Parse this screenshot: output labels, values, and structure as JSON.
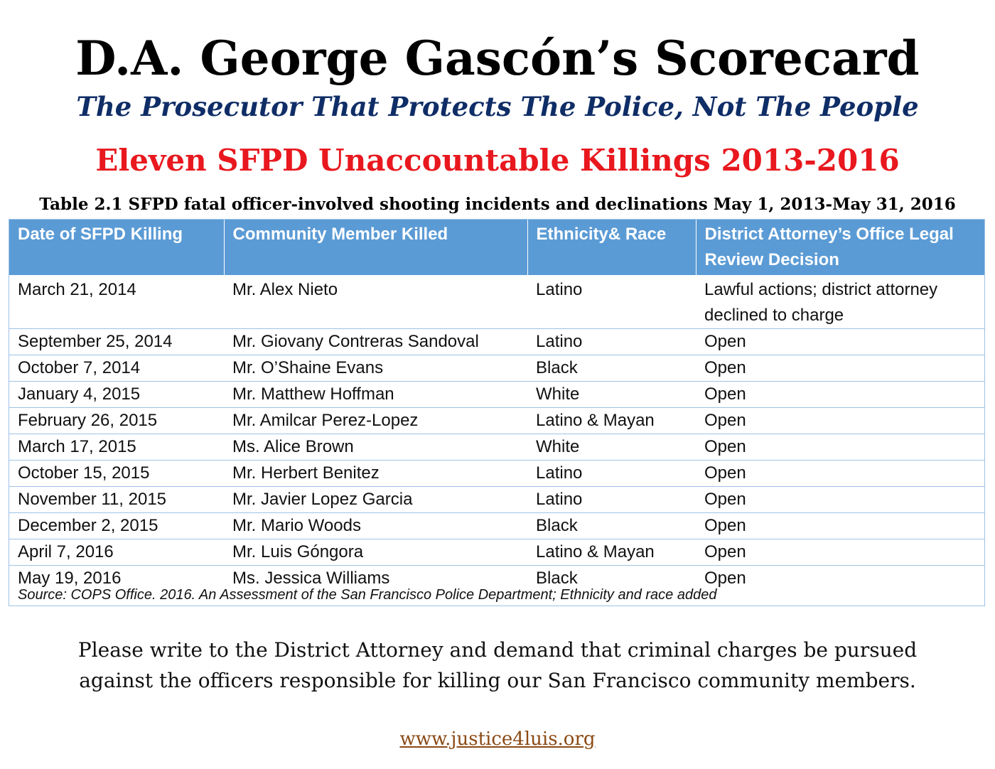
{
  "header": {
    "title": "D.A. George Gascón’s Scorecard",
    "subtitle": "The Prosecutor That Protects The Police, Not The People",
    "headline": "Eleven SFPD Unaccountable Killings 2013-2016",
    "caption": "Table 2.1 SFPD fatal officer-involved shooting incidents and declinations May 1, 2013-May 31, 2016"
  },
  "table": {
    "columns": [
      "Date of SFPD Killing",
      "Community Member Killed",
      "Ethnicity& Race",
      "District Attorney’s Office Legal Review Decision"
    ],
    "rows": [
      [
        "March 21, 2014",
        "Mr. Alex Nieto",
        "Latino",
        "Lawful actions; district attorney declined to charge"
      ],
      [
        "September 25, 2014",
        "Mr. Giovany Contreras Sandoval",
        "Latino",
        "Open"
      ],
      [
        "October 7, 2014",
        "Mr. O’Shaine Evans",
        "Black",
        "Open"
      ],
      [
        "January 4, 2015",
        "Mr. Matthew Hoffman",
        "White",
        "Open"
      ],
      [
        "February 26, 2015",
        "Mr. Amilcar Perez-Lopez",
        "Latino & Mayan",
        "Open"
      ],
      [
        "March 17, 2015",
        "Ms. Alice Brown",
        "White",
        "Open"
      ],
      [
        "October 15, 2015",
        "Mr. Herbert Benitez",
        "Latino",
        "Open"
      ],
      [
        "November 11, 2015",
        "Mr. Javier Lopez Garcia",
        "Latino",
        "Open"
      ],
      [
        "December 2, 2015",
        "Mr. Mario Woods",
        "Black",
        "Open"
      ],
      [
        "April 7, 2016",
        "Mr. Luis Góngora",
        "Latino & Mayan",
        "Open"
      ],
      [
        "May 19, 2016",
        "Ms. Jessica Williams",
        "Black",
        "Open"
      ]
    ],
    "source": "Source: COPS Office. 2016. An Assessment of the San Francisco Police Department; Ethnicity and race added"
  },
  "appeal": {
    "line1": "Please write to the District Attorney and demand that criminal charges be pursued",
    "line2": "against the officers responsible for killing our San Francisco community members."
  },
  "footer": {
    "link": "www.justice4luis.org"
  },
  "colors": {
    "subtitle": "#0f2d66",
    "headline": "#e8181e",
    "table_header": "#5b9bd5",
    "link": "#8b4a14"
  }
}
